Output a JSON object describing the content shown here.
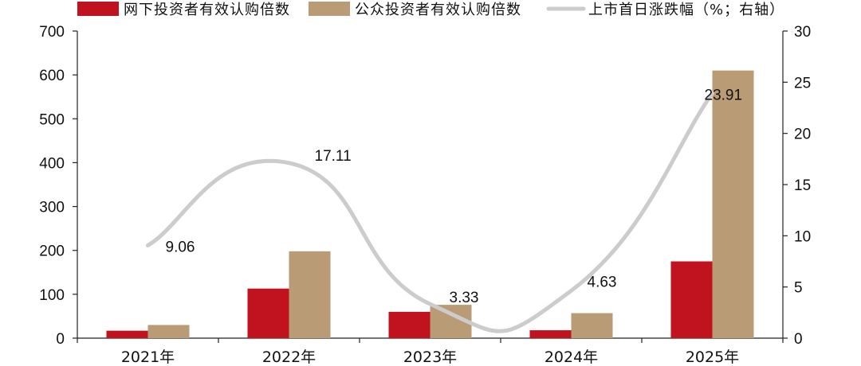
{
  "chart_data": {
    "type": "bar",
    "categories": [
      "2021年",
      "2022年",
      "2023年",
      "2024年",
      "2025年"
    ],
    "series": [
      {
        "name": "网下投资者有效认购倍数",
        "type": "bar",
        "axis": "left",
        "color": "#c0131f",
        "values": [
          17,
          113,
          60,
          18,
          175
        ]
      },
      {
        "name": "公众投资者有效认购倍数",
        "type": "bar",
        "axis": "left",
        "color": "#b99b76",
        "values": [
          30,
          198,
          76,
          57,
          610
        ]
      },
      {
        "name": "上市首日涨跌幅（%；右轴）",
        "type": "line",
        "axis": "right",
        "color": "#cccccc",
        "values": [
          9.06,
          17.11,
          3.33,
          4.63,
          23.91
        ],
        "labels": [
          "9.06",
          "17.11",
          "3.33",
          "4.63",
          "23.91"
        ]
      }
    ],
    "ylim_left": [
      0,
      700
    ],
    "yticks_left": [
      "0",
      "100",
      "200",
      "300",
      "400",
      "500",
      "600",
      "700"
    ],
    "ylim_right": [
      0,
      30
    ],
    "yticks_right": [
      "0",
      "5",
      "10",
      "15",
      "20",
      "25",
      "30"
    ],
    "legend_position": "top",
    "grid": false,
    "title": "",
    "xlabel": "",
    "ylabel": ""
  }
}
